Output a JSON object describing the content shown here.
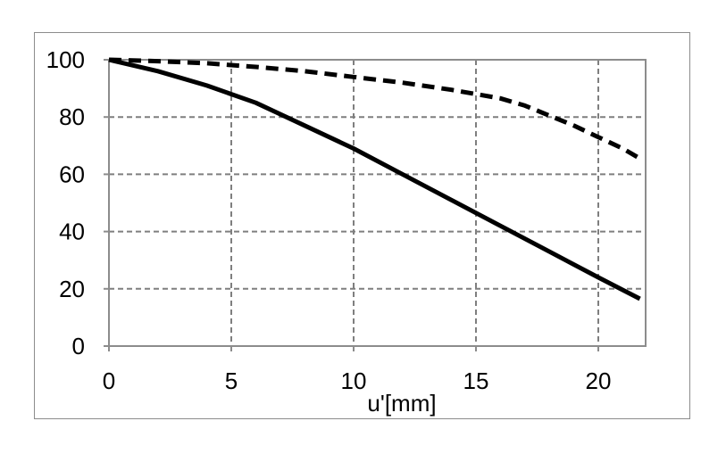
{
  "chart_data": {
    "type": "line",
    "xlabel": "u'[mm]",
    "ylabel": "",
    "xlim": [
      0,
      22
    ],
    "ylim": [
      0,
      100
    ],
    "x_ticks": [
      0,
      5,
      10,
      15,
      20
    ],
    "y_ticks": [
      0,
      20,
      40,
      60,
      80,
      100
    ],
    "x_tick_labels": [
      "0",
      "5",
      "10",
      "15",
      "20"
    ],
    "y_tick_labels": [
      "0",
      "20",
      "40",
      "60",
      "80",
      "100"
    ],
    "grid": true,
    "series": [
      {
        "style": "solid",
        "color": "#000000",
        "x": [
          0,
          2,
          4,
          6,
          8,
          10,
          12,
          14,
          16,
          18,
          20,
          21.7
        ],
        "y": [
          100,
          96,
          91,
          85,
          77,
          69,
          60,
          51,
          42,
          33,
          24,
          16.5
        ]
      },
      {
        "style": "dashed",
        "color": "#000000",
        "x": [
          0,
          2,
          4,
          6,
          8,
          10,
          12,
          14,
          16,
          17,
          18,
          19,
          20,
          21,
          21.7
        ],
        "y": [
          100,
          99.5,
          98.8,
          97.5,
          96,
          94,
          92,
          89.5,
          86.5,
          84,
          80.5,
          77,
          73,
          69,
          65.5
        ]
      }
    ]
  }
}
